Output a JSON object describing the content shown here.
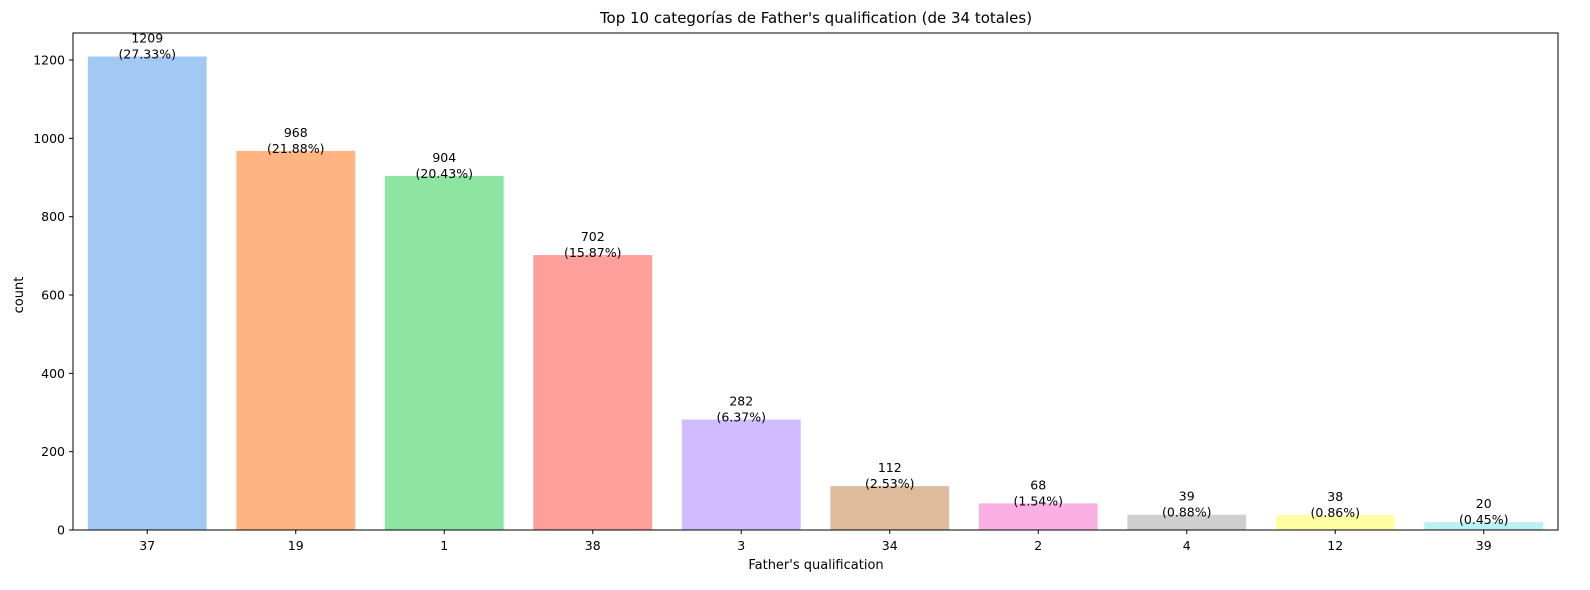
{
  "chart_data": {
    "type": "bar",
    "title": "Top 10 categorías de Father's qualification (de 34 totales)",
    "xlabel": "Father's qualification",
    "ylabel": "count",
    "categories": [
      "37",
      "19",
      "1",
      "38",
      "3",
      "34",
      "2",
      "4",
      "12",
      "39"
    ],
    "values": [
      1209,
      968,
      904,
      702,
      282,
      112,
      68,
      39,
      38,
      20
    ],
    "percent_labels": [
      "(27.33%)",
      "(21.88%)",
      "(20.43%)",
      "(15.87%)",
      "(6.37%)",
      "(2.53%)",
      "(1.54%)",
      "(0.88%)",
      "(0.86%)",
      "(0.45%)"
    ],
    "colors": [
      "#a1c9f4",
      "#ffb482",
      "#8de5a1",
      "#ff9f9b",
      "#d0bbff",
      "#debb9b",
      "#fab0e4",
      "#cfcfcf",
      "#fffea3",
      "#b9f2f0"
    ],
    "ylim": [
      0,
      1269
    ],
    "yticks": [
      0,
      200,
      400,
      600,
      800,
      1000,
      1200
    ],
    "grid": false,
    "legend": "none"
  }
}
